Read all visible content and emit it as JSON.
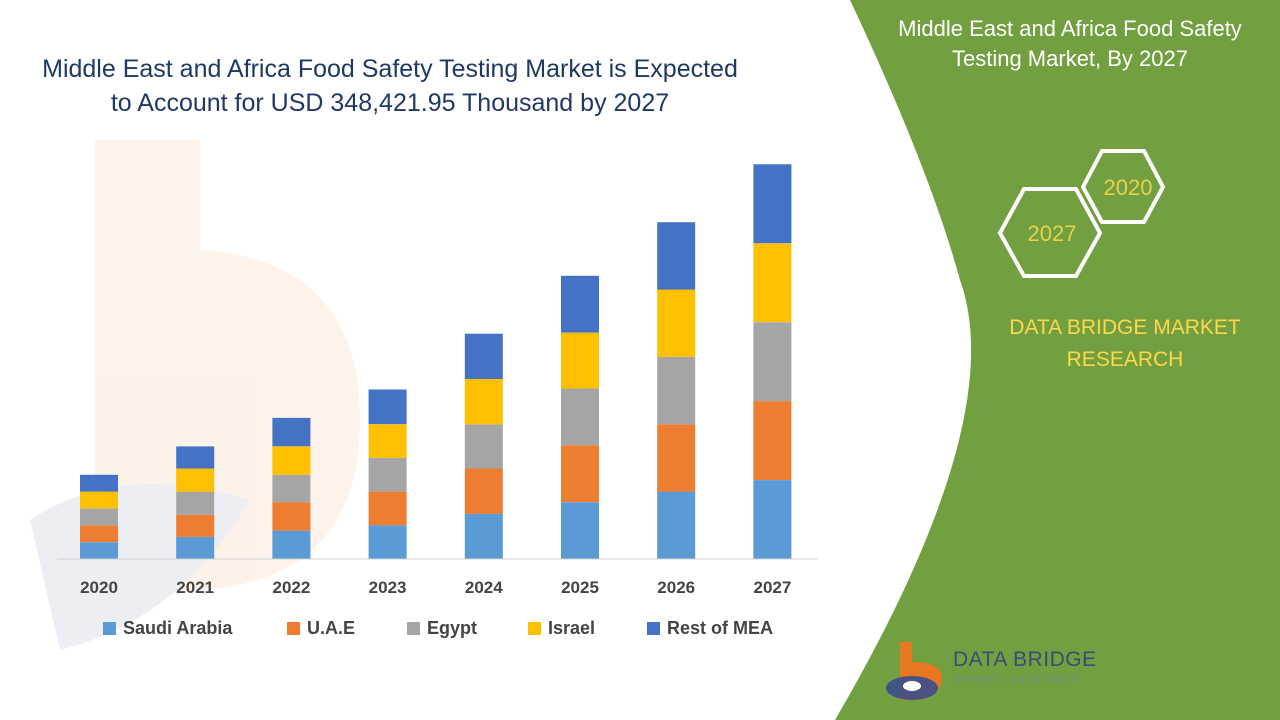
{
  "title": "Middle East and Africa Food Safety Testing Market is Expected to Account for USD 348,421.95 Thousand by 2027",
  "side_panel": {
    "title": "Middle East and Africa Food Safety Testing Market, By 2027",
    "hex_years": [
      "2020",
      "2027"
    ],
    "brand_text": "DATA BRIDGE MARKET RESEARCH",
    "logo_name": "DATA BRIDGE",
    "logo_subtitle": "MARKET RESEARCH"
  },
  "colors": {
    "panel_green": "#72a040",
    "title_blue": "#1f3864",
    "brand_yellow": "#ffd84a"
  },
  "chart_data": {
    "type": "bar",
    "stacked": true,
    "categories": [
      "2020",
      "2021",
      "2022",
      "2023",
      "2024",
      "2025",
      "2026",
      "2027"
    ],
    "series": [
      {
        "name": "Saudi Arabia",
        "color": "#5b9bd5",
        "values": [
          16,
          21,
          27,
          32,
          43,
          54,
          64,
          75
        ]
      },
      {
        "name": "U.A.E",
        "color": "#ed7d31",
        "values": [
          16,
          21,
          27,
          32,
          43,
          54,
          64,
          75
        ]
      },
      {
        "name": "Egypt",
        "color": "#a5a5a5",
        "values": [
          16,
          22,
          26,
          32,
          42,
          54,
          64,
          75
        ]
      },
      {
        "name": "Israel",
        "color": "#ffc000",
        "values": [
          16,
          22,
          27,
          32,
          43,
          53,
          64,
          75
        ]
      },
      {
        "name": "Rest of MEA",
        "color": "#4472c4",
        "values": [
          16,
          21,
          27,
          33,
          43,
          54,
          64,
          75
        ]
      }
    ],
    "ylim": [
      0,
      380
    ],
    "grid": false,
    "legend_position": "bottom"
  }
}
